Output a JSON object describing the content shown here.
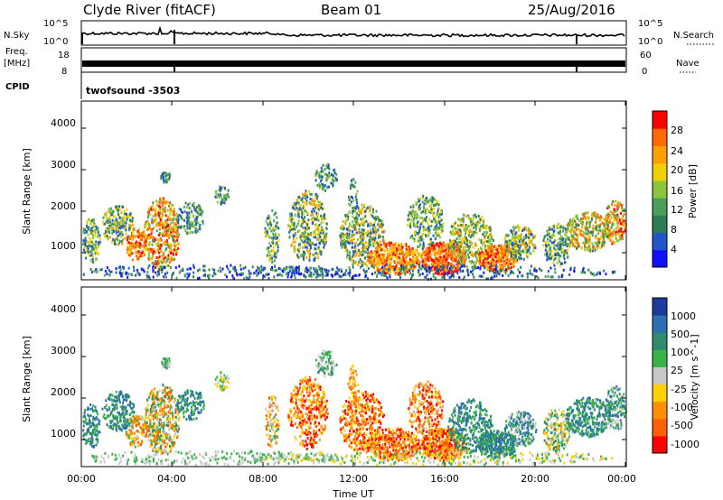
{
  "header": {
    "station": "Clyde River (fitACF)",
    "beam": "Beam 01",
    "date": "25/Aug/2016"
  },
  "left_labels": {
    "nsky": "N.Sky",
    "freq_line1": "Freq.",
    "freq_line2": "[MHz]",
    "cpid": "CPID"
  },
  "right_labels": {
    "nsearch": "N.Search",
    "nave": "Nave"
  },
  "strip_nsky": {
    "left_ticks": [
      "10^5",
      "10^0"
    ],
    "right_ticks": [
      "10^5",
      "10^0"
    ]
  },
  "strip_freq": {
    "left_ticks": [
      "18",
      "8"
    ],
    "right_ticks": [
      "60",
      "0"
    ]
  },
  "cpid_label": "twofsound -3503",
  "chart_data": [
    {
      "type": "heatmap",
      "name": "Power",
      "ylabel": "Slant Range [km]",
      "yticks": [
        "4000",
        "3000",
        "2000",
        "1000"
      ],
      "colorbar_label": "Power [dB]",
      "colorbar_ticks": [
        "28",
        "24",
        "20",
        "16",
        "12",
        "8",
        "4"
      ],
      "colors": [
        "#1010ff",
        "#2255c8",
        "#2e7d52",
        "#4aa05a",
        "#8cc63f",
        "#f0d000",
        "#ffa000",
        "#ff6a00",
        "#ff0000"
      ]
    },
    {
      "type": "heatmap",
      "name": "Velocity",
      "ylabel": "Slant Range [km]",
      "yticks": [
        "4000",
        "3000",
        "2000",
        "1000"
      ],
      "xlabel": "Time UT",
      "xticks": [
        "00:00",
        "04:00",
        "08:00",
        "12:00",
        "16:00",
        "20:00",
        "00:00"
      ],
      "colorbar_label": "Velocity [m s^-1]",
      "colorbar_ticks": [
        "1000",
        "500",
        "100",
        "25",
        "-25",
        "-100",
        "-500",
        "-1000"
      ],
      "colors": [
        "#1a3aa0",
        "#2d6fb0",
        "#2f8a6e",
        "#3bb34a",
        "#c8c8c8",
        "#ffd000",
        "#ff9000",
        "#ff6000",
        "#ff0000"
      ]
    }
  ]
}
